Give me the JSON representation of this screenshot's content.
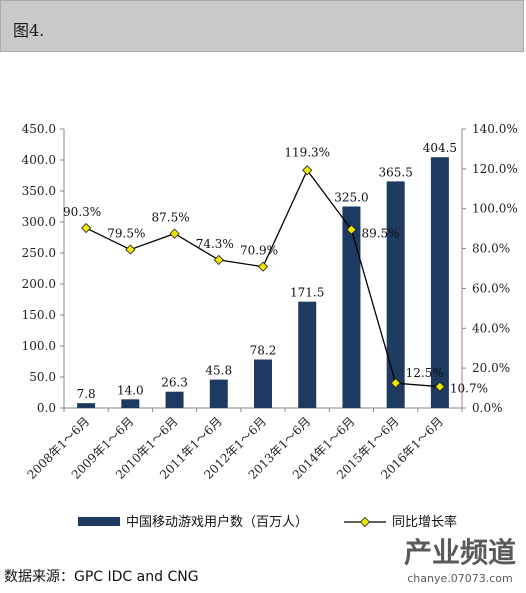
{
  "header": {
    "title": "图4."
  },
  "chart_data": {
    "type": "bar",
    "categories": [
      "2008年1～6月",
      "2009年1～6月",
      "2010年1～6月",
      "2011年1～6月",
      "2012年1～6月",
      "2013年1～6月",
      "2014年1～6月",
      "2015年1～6月",
      "2016年1～6月"
    ],
    "series": [
      {
        "name": "中国移动游戏用户数（百万人）",
        "type": "bar",
        "axis": "left",
        "values": [
          7.8,
          14.0,
          26.3,
          45.8,
          78.2,
          171.5,
          325.0,
          365.5,
          404.5
        ],
        "labels": [
          "7.8",
          "14.0",
          "26.3",
          "45.8",
          "78.2",
          "171.5",
          "325.0",
          "365.5",
          "404.5"
        ]
      },
      {
        "name": "同比增长率",
        "type": "line",
        "axis": "right",
        "values": [
          90.3,
          79.5,
          87.5,
          74.3,
          70.9,
          119.3,
          89.5,
          12.5,
          10.7
        ],
        "labels": [
          "90.3%",
          "79.5%",
          "87.5%",
          "74.3%",
          "70.9%",
          "119.3%",
          "89.5%",
          "12.5%",
          "10.7%"
        ]
      }
    ],
    "y_left": {
      "ylim": [
        0,
        450
      ],
      "ticks": [
        "0.0",
        "50.0",
        "100.0",
        "150.0",
        "200.0",
        "250.0",
        "300.0",
        "350.0",
        "400.0",
        "450.0"
      ]
    },
    "y_right": {
      "ylim": [
        0,
        140
      ],
      "ticks": [
        "0.0%",
        "20.0%",
        "40.0%",
        "60.0%",
        "80.0%",
        "100.0%",
        "120.0%",
        "140.0%"
      ]
    },
    "xlabel": "",
    "ylabel": "",
    "grid": false,
    "legend_position": "bottom",
    "colors": {
      "bar": "#1f3a60",
      "line": "#000000",
      "marker": "#f2e600"
    }
  },
  "source": "数据来源：GPC IDC and CNG",
  "watermark": {
    "line1": "产业频道",
    "line2": "chanye.07073.com"
  }
}
